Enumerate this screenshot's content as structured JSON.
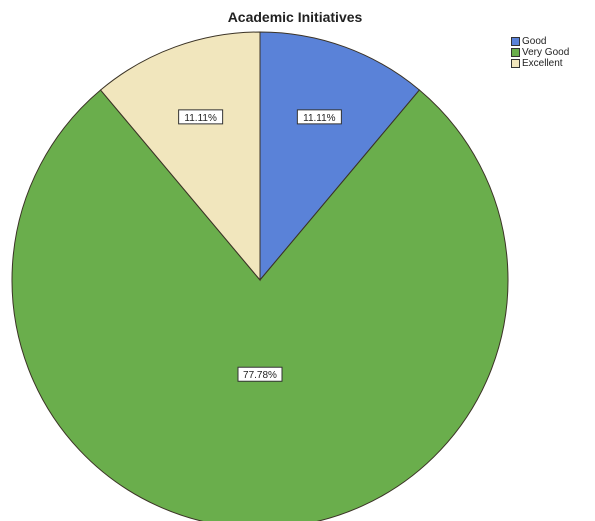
{
  "chart_data": {
    "type": "pie",
    "title": "Academic Initiatives",
    "categories": [
      "Good",
      "Very Good",
      "Excellent"
    ],
    "values": [
      11.11,
      77.78,
      11.11
    ],
    "labels": [
      "11.11%",
      "77.78%",
      "11.11%"
    ],
    "colors": [
      "#5a82d8",
      "#6aae4c",
      "#f1e6bd"
    ],
    "start_angle": "12 o'clock, clockwise",
    "legend": {
      "placement": "top-right",
      "entries": [
        "Good",
        "Very Good",
        "Excellent"
      ]
    }
  }
}
